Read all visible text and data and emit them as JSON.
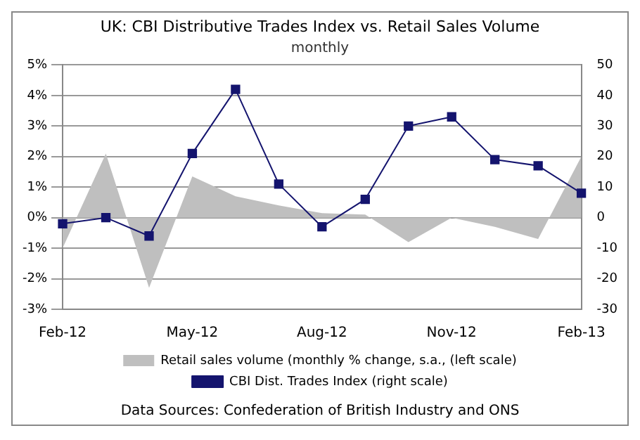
{
  "chart_data": {
    "type": "line",
    "title": "UK: CBI Distributive Trades Index vs. Retail Sales Volume",
    "subtitle": "monthly",
    "categories": [
      "Feb-12",
      null,
      null,
      "May-12",
      null,
      null,
      "Aug-12",
      null,
      null,
      "Nov-12",
      null,
      null,
      "Feb-13"
    ],
    "series": [
      {
        "name": "Retail sales volume (monthly % change, s.a., (left scale)",
        "type": "area",
        "color": "#bfbfbf",
        "values": [
          -1.0,
          2.1,
          -2.3,
          1.35,
          0.7,
          0.4,
          0.15,
          0.1,
          -0.8,
          0.0,
          -0.3,
          -0.7,
          2.0
        ]
      },
      {
        "name": "CBI Dist. Trades Index (right scale)",
        "type": "line",
        "axis": "y2",
        "color": "#14146e",
        "marker": "square",
        "line_style": "solid",
        "values": [
          -2,
          0,
          -6,
          21,
          42,
          11,
          -3,
          6,
          30,
          33,
          19,
          17,
          8
        ]
      }
    ],
    "ylim": [
      -3,
      5
    ],
    "yticks": [
      {
        "value": -3,
        "label": "-3%"
      },
      {
        "value": -2,
        "label": "-2%"
      },
      {
        "value": -1,
        "label": "-1%"
      },
      {
        "value": 0,
        "label": "0%"
      },
      {
        "value": 1,
        "label": "1%"
      },
      {
        "value": 2,
        "label": "2%"
      },
      {
        "value": 3,
        "label": "3%"
      },
      {
        "value": 4,
        "label": "4%"
      },
      {
        "value": 5,
        "label": "5%"
      }
    ],
    "y2lim": [
      -30,
      50
    ],
    "y2ticks": [
      -30,
      -20,
      -10,
      0,
      10,
      20,
      30,
      40,
      50
    ],
    "grid": "y",
    "legend": "bottom",
    "annotations": [
      "Data Sources: Confederation of British Industry and ONS"
    ]
  }
}
